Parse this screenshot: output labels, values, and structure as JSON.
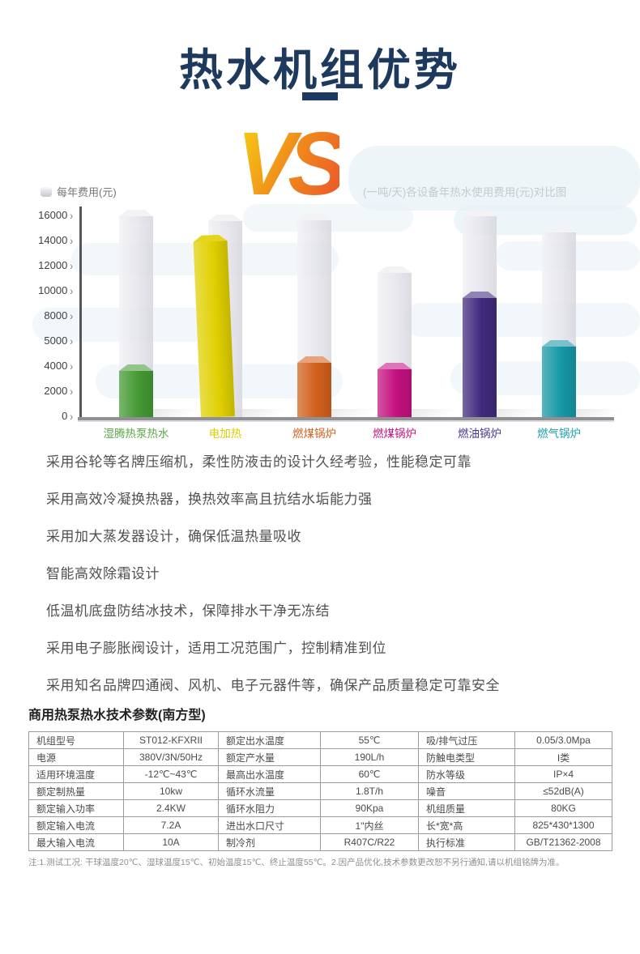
{
  "header": {
    "title": "热水机组优势"
  },
  "vs": {
    "text": "VS",
    "color_from": "#f5c816",
    "color_mid": "#f08c1a",
    "color_to": "#ec5f28"
  },
  "chart_data": {
    "type": "bar",
    "title": "(一吨/天)各设备年热水使用费用(元)对比图",
    "legend": "每年费用(元)",
    "ylabel": "每年费用(元)",
    "xlabel": "",
    "ylim": [
      0,
      16000
    ],
    "yticks": [
      "16000",
      "14000",
      "12000",
      "10000",
      "8000",
      "5000",
      "4000",
      "2000",
      "0"
    ],
    "categories": [
      "湿腾热泵热水",
      "电加热",
      "燃煤锅炉",
      "燃煤锅炉",
      "燃油锅炉",
      "燃气锅炉"
    ],
    "series": [
      {
        "name": "每年费用(元)",
        "values": [
          3700,
          14000,
          4300,
          3800,
          9500,
          5600
        ]
      },
      {
        "name": "背景参考柱(灰色)",
        "values": [
          16000,
          15600,
          15700,
          11500,
          16000,
          14700
        ]
      }
    ],
    "bar_colors": [
      "#449a34",
      "#e0d002",
      "#d2601d",
      "#c3117f",
      "#3f2a7d",
      "#1798a5"
    ],
    "label_colors": [
      "#5aa746",
      "#d8cd00",
      "#d2601d",
      "#c3117f",
      "#4a3490",
      "#1a9fae"
    ],
    "grid": false,
    "legend_position": "top-left"
  },
  "advantages": [
    "采用谷轮等名牌压缩机，柔性防液击的设计久经考验，性能稳定可靠",
    "采用高效冷凝换热器，换热效率高且抗结水垢能力强",
    "采用加大蒸发器设计，确保低温热量吸收",
    "智能高效除霜设计",
    "低温机底盘防结冰技术，保障排水干净无冻结",
    "采用电子膨胀阀设计，适用工况范围广，控制精准到位",
    "采用知名品牌四通阀、风机、电子元器件等，确保产品质量稳定可靠安全"
  ],
  "spec_table": {
    "title": "商用热泵热水技术参数(南方型)",
    "rows": [
      [
        "机组型号",
        "ST012-KFXRII",
        "额定出水温度",
        "55℃",
        "吸/排气过压",
        "0.05/3.0Mpa"
      ],
      [
        "电源",
        "380V/3N/50Hz",
        "额定产水量",
        "190L/h",
        "防触电类型",
        "I类"
      ],
      [
        "适用环境温度",
        "-12℃~43℃",
        "最高出水温度",
        "60℃",
        "防水等级",
        "IP×4"
      ],
      [
        "额定制热量",
        "10kw",
        "循环水流量",
        "1.8T/h",
        "噪音",
        "≤52dB(A)"
      ],
      [
        "额定输入功率",
        "2.4KW",
        "循环水阻力",
        "90Kpa",
        "机组质量",
        "80KG"
      ],
      [
        "额定输入电流",
        "7.2A",
        "进出水口尺寸",
        "1\"内丝",
        "长*宽*高",
        "825*430*1300"
      ],
      [
        "最大输入电流",
        "10A",
        "制冷剂",
        "R407C/R22",
        "执行标准",
        "GB/T21362-2008"
      ]
    ],
    "note": "注:1.测试工况: 干球温度20℃、湿球温度15℃、初始温度15℃、终止温度55℃。2.因产品优化,技术参数更改恕不另行通知,请以机组铭牌为准。"
  }
}
